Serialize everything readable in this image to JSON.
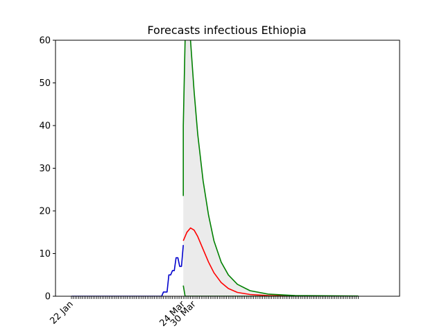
{
  "chart_data": {
    "type": "line",
    "title": "Forecasts infectious Ethiopia",
    "xlabel": "",
    "ylabel": "",
    "ylim": [
      0,
      60
    ],
    "yticks": [
      0,
      10,
      20,
      30,
      40,
      50,
      60
    ],
    "x_start": "22 Jan",
    "x_end": "29 Jun",
    "x_ticks_labeled": [
      "22 Jan",
      "24 Mar",
      "30 Mar"
    ],
    "grid": false,
    "legend": "none",
    "series": [
      {
        "role": "observed",
        "color": "#0000cc",
        "points": [
          [
            "22 Jan",
            0
          ],
          [
            "12 Mar",
            0
          ],
          [
            "13 Mar",
            1
          ],
          [
            "14 Mar",
            1
          ],
          [
            "15 Mar",
            1
          ],
          [
            "16 Mar",
            5
          ],
          [
            "17 Mar",
            5
          ],
          [
            "18 Mar",
            6
          ],
          [
            "19 Mar",
            6
          ],
          [
            "20 Mar",
            9
          ],
          [
            "21 Mar",
            9
          ],
          [
            "22 Mar",
            7
          ],
          [
            "23 Mar",
            7
          ],
          [
            "24 Mar",
            12
          ]
        ]
      },
      {
        "role": "forecast-median",
        "color": "#ff0000",
        "points": [
          [
            "24 Mar",
            13.0
          ],
          [
            "26 Mar",
            15.0
          ],
          [
            "28 Mar",
            16.0
          ],
          [
            "30 Mar",
            15.5
          ],
          [
            "1 Apr",
            14.0
          ],
          [
            "4 Apr",
            11.0
          ],
          [
            "7 Apr",
            8.0
          ],
          [
            "10 Apr",
            5.5
          ],
          [
            "14 Apr",
            3.2
          ],
          [
            "18 Apr",
            1.8
          ],
          [
            "23 Apr",
            0.9
          ],
          [
            "30 Apr",
            0.4
          ],
          [
            "10 May",
            0.15
          ],
          [
            "25 May",
            0.05
          ],
          [
            "29 Jun",
            0
          ]
        ]
      },
      {
        "role": "forecast-upper",
        "color": "#008000",
        "points": [
          [
            "24 Mar",
            23.5
          ],
          [
            "24 Mar",
            40
          ],
          [
            "25 Mar",
            60
          ],
          [
            "26 Mar",
            66
          ],
          [
            "27 Mar",
            66
          ],
          [
            "28 Mar",
            60
          ],
          [
            "30 Mar",
            48
          ],
          [
            "1 Apr",
            38
          ],
          [
            "4 Apr",
            27
          ],
          [
            "7 Apr",
            19
          ],
          [
            "10 Apr",
            13
          ],
          [
            "14 Apr",
            8
          ],
          [
            "18 Apr",
            5
          ],
          [
            "23 Apr",
            2.8
          ],
          [
            "30 Apr",
            1.3
          ],
          [
            "10 May",
            0.5
          ],
          [
            "25 May",
            0.15
          ],
          [
            "29 Jun",
            0.05
          ]
        ]
      },
      {
        "role": "forecast-lower",
        "color": "#008000",
        "points": [
          [
            "24 Mar",
            2.5
          ],
          [
            "25 Mar",
            0
          ],
          [
            "29 Jun",
            0
          ]
        ]
      }
    ],
    "band_fill": "#ebebeb"
  }
}
